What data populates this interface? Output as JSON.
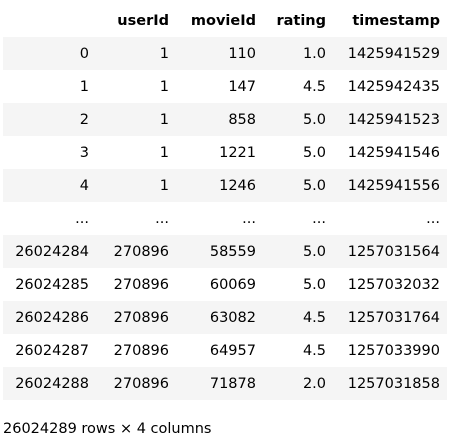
{
  "table": {
    "columns": [
      "",
      "userId",
      "movieId",
      "rating",
      "timestamp"
    ],
    "rows": [
      [
        "0",
        "1",
        "110",
        "1.0",
        "1425941529"
      ],
      [
        "1",
        "1",
        "147",
        "4.5",
        "1425942435"
      ],
      [
        "2",
        "1",
        "858",
        "5.0",
        "1425941523"
      ],
      [
        "3",
        "1",
        "1221",
        "5.0",
        "1425941546"
      ],
      [
        "4",
        "1",
        "1246",
        "5.0",
        "1425941556"
      ],
      [
        "...",
        "...",
        "...",
        "...",
        "..."
      ],
      [
        "26024284",
        "270896",
        "58559",
        "5.0",
        "1257031564"
      ],
      [
        "26024285",
        "270896",
        "60069",
        "5.0",
        "1257032032"
      ],
      [
        "26024286",
        "270896",
        "63082",
        "4.5",
        "1257031764"
      ],
      [
        "26024287",
        "270896",
        "64957",
        "4.5",
        "1257033990"
      ],
      [
        "26024288",
        "270896",
        "71878",
        "2.0",
        "1257031858"
      ]
    ]
  },
  "footer": {
    "shape_text": "26024289 rows × 4 columns"
  },
  "colors": {
    "stripe": "#f5f5f5",
    "background": "#ffffff",
    "text": "#000000"
  }
}
